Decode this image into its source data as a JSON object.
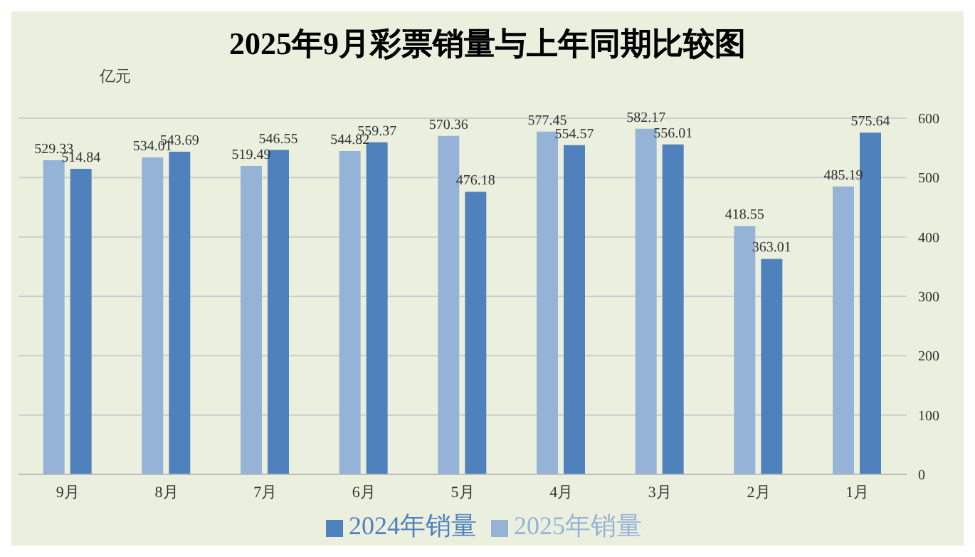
{
  "chart_data": {
    "type": "bar",
    "title": "2025年9月彩票销量与上年同期比较图",
    "ylabel": "亿元",
    "categories": [
      "9月",
      "8月",
      "7月",
      "6月",
      "5月",
      "4月",
      "3月",
      "2月",
      "1月"
    ],
    "series": [
      {
        "name": "2025年销量",
        "color": "#95b3d7",
        "values": [
          529.33,
          534.01,
          519.49,
          544.82,
          570.36,
          577.45,
          582.17,
          418.55,
          485.19
        ]
      },
      {
        "name": "2024年销量",
        "color": "#4f81bd",
        "values": [
          514.84,
          543.69,
          546.55,
          559.37,
          476.18,
          554.57,
          556.01,
          363.01,
          575.64
        ]
      }
    ],
    "ylim": [
      0,
      600
    ],
    "yticks": [
      0,
      100,
      200,
      300,
      400,
      500,
      600
    ],
    "grid": "y",
    "legend": "bottom",
    "data_labels": true
  }
}
